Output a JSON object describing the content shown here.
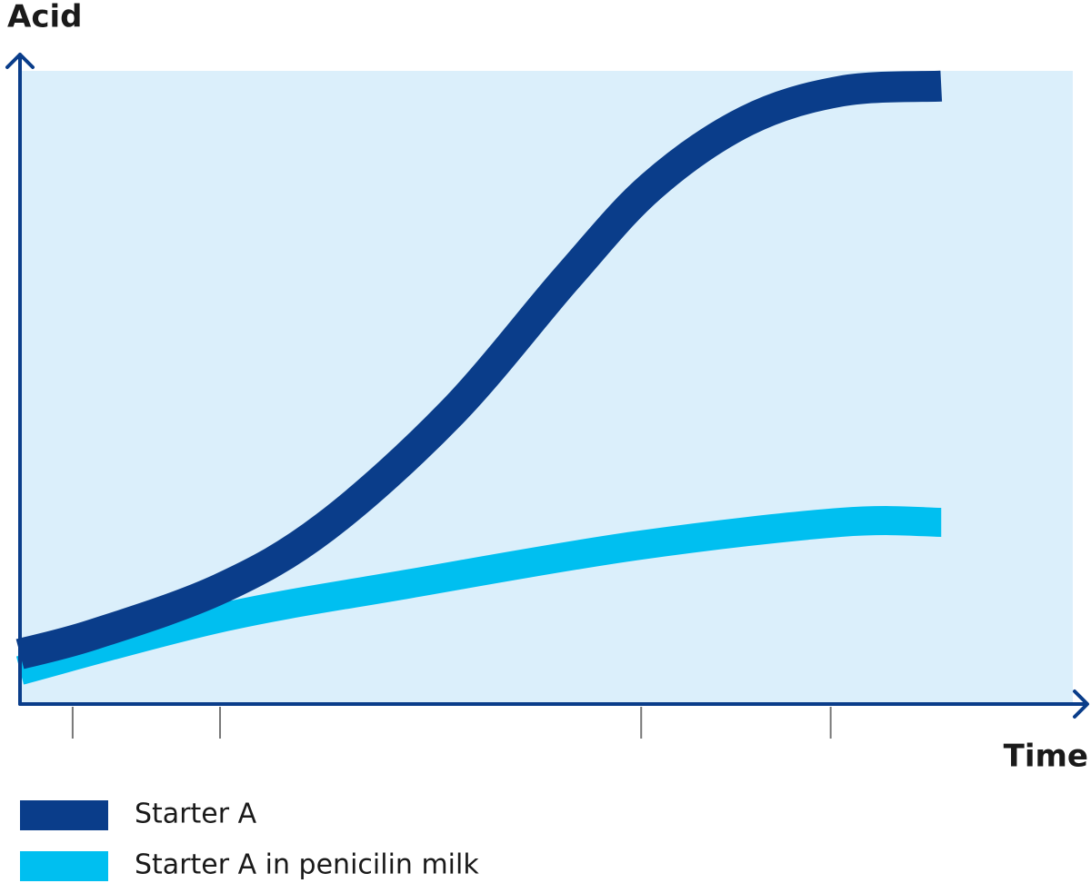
{
  "chart_data": {
    "type": "line",
    "y_label": "Acid",
    "x_label": "Time",
    "xlim": [
      0,
      100
    ],
    "ylim": [
      0,
      100
    ],
    "xticks": [
      5,
      19,
      59,
      77
    ],
    "background": "#dbeffb",
    "axis_color": "#0a3d8a",
    "tick_color": "#777777",
    "series": [
      {
        "name": "Starter A",
        "color": "#0a3d8a",
        "x": [
          0,
          7,
          19,
          29,
          41,
          52,
          60,
          69,
          78,
          87.5
        ],
        "values": [
          7.9,
          11,
          18.2,
          28,
          46,
          67.4,
          81.8,
          92.1,
          96.8,
          97.6
        ]
      },
      {
        "name": "Starter A in penicilin milk",
        "color": "#00bff0",
        "x": [
          0,
          19,
          37,
          58.5,
          78,
          87.5
        ],
        "values": [
          5.3,
          13.6,
          19,
          25,
          28.7,
          28.7
        ]
      }
    ]
  }
}
